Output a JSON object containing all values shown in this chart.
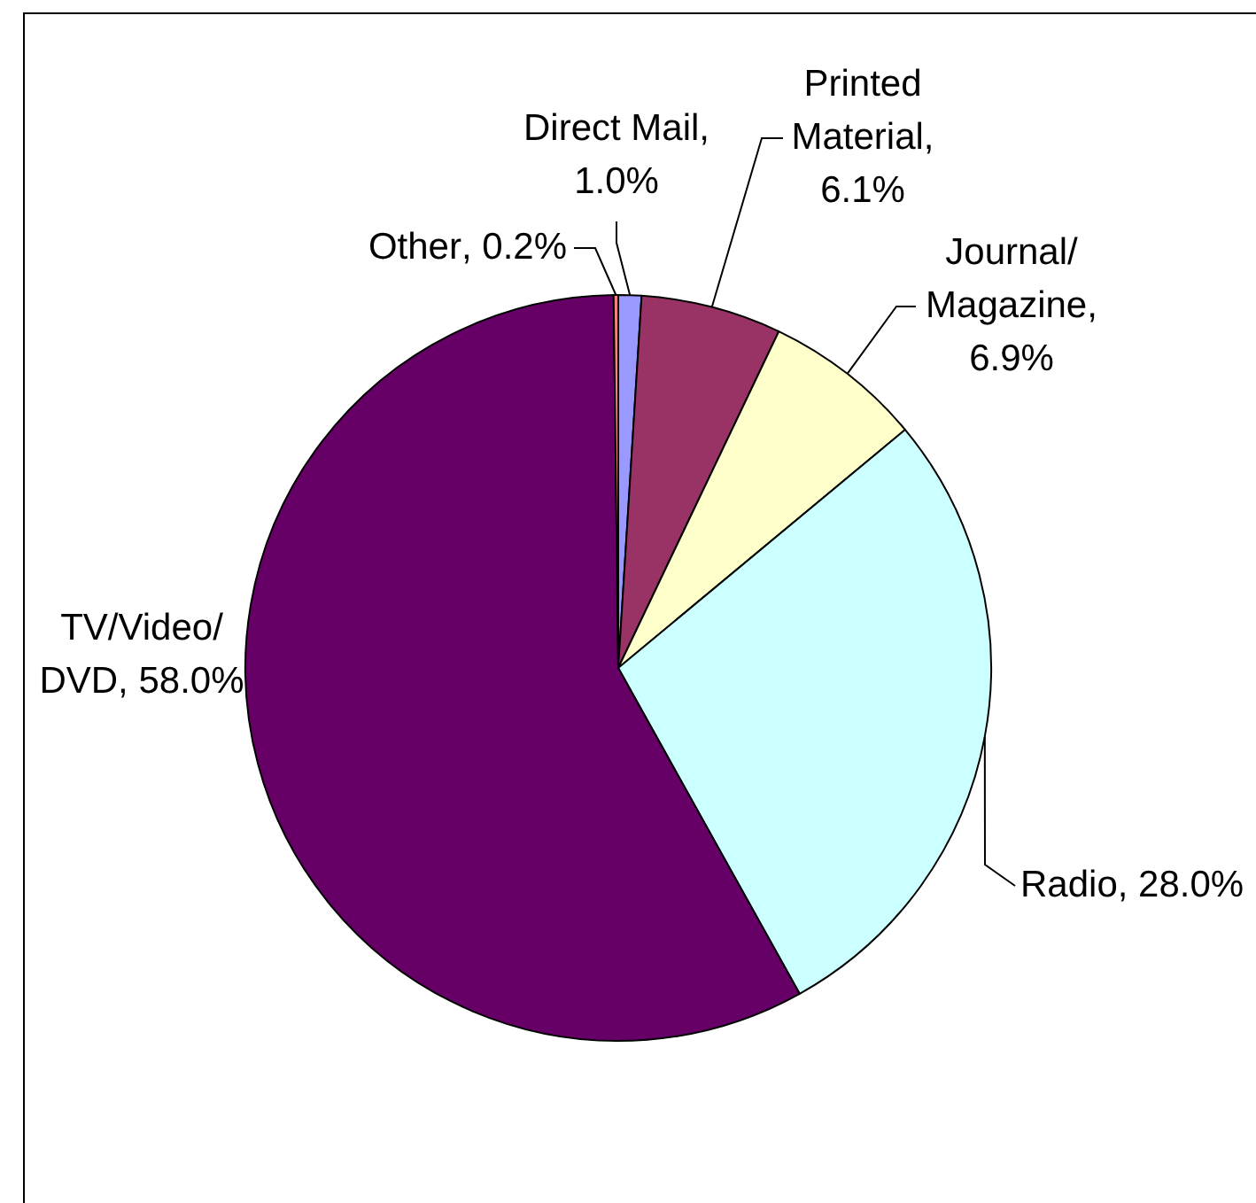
{
  "chart_data": {
    "type": "pie",
    "categories": [
      "Direct Mail",
      "Printed Material",
      "Journal/Magazine",
      "Radio",
      "TV/Video/DVD",
      "Other"
    ],
    "value_labels": [
      ", 1.0%",
      ", 6.1%",
      ", 6.9%",
      ", 28.0%",
      ", 58.0%",
      ", 0.2%"
    ],
    "values": [
      1.0,
      6.1,
      6.9,
      28.0,
      58.0,
      0.2
    ],
    "colors": [
      "#9999ff",
      "#993366",
      "#ffffcc",
      "#ccffff",
      "#660066",
      "#ff8080"
    ],
    "legend": false
  }
}
